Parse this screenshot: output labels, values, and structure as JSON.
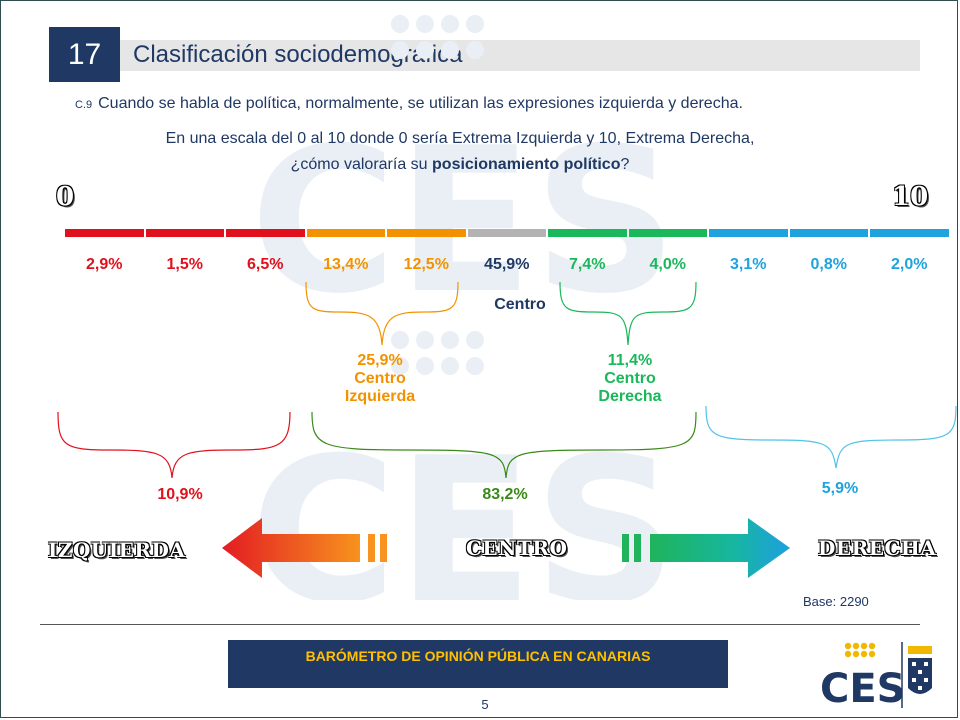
{
  "slide": {
    "number": "17",
    "title": "Clasificación sociodemográfica"
  },
  "question": {
    "code": "C.9",
    "line1": "Cuando se habla de política, normalmente, se utilizan las expresiones izquierda y derecha.",
    "line2": "En una escala del 0 al 10 donde 0 sería Extrema Izquierda y 10, Extrema Derecha,",
    "line3_pre": "¿cómo valoraría su ",
    "line3_bold": "posicionamiento político",
    "line3_post": "?"
  },
  "scale": {
    "min_label": "0",
    "max_label": "10"
  },
  "colors": {
    "red": "#e0101c",
    "orange": "#f39200",
    "gray": "#b3b3b3",
    "green": "#1ab85a",
    "blue": "#1fa3de",
    "navy": "#1f3864",
    "red_dark": "#c00000",
    "green_dark": "#3a8a1a",
    "orange_dark": "#f39200",
    "blue_light": "#4fc3e8"
  },
  "chart_data": {
    "type": "bar",
    "categories": [
      "0",
      "1",
      "2",
      "3",
      "4",
      "5",
      "6",
      "7",
      "8",
      "9",
      "10"
    ],
    "values": [
      2.9,
      1.5,
      6.5,
      13.4,
      12.5,
      45.9,
      7.4,
      4.0,
      3.1,
      0.8,
      2.0
    ],
    "value_labels": [
      "2,9%",
      "1,5%",
      "6,5%",
      "13,4%",
      "12,5%",
      "45,9%",
      "7,4%",
      "4,0%",
      "3,1%",
      "0,8%",
      "2,0%"
    ],
    "segment_colors": [
      "red",
      "red",
      "red",
      "orange",
      "orange",
      "gray",
      "green",
      "green",
      "blue",
      "blue",
      "blue"
    ],
    "groups": {
      "centro": {
        "label": "Centro"
      },
      "centro_izquierda": {
        "value": "25,9%",
        "line1": "Centro",
        "line2": "Izquierda"
      },
      "centro_derecha": {
        "value": "11,4%",
        "line1": "Centro",
        "line2": "Derecha"
      },
      "izquierda": {
        "value": "10,9%"
      },
      "centro_total": {
        "value": "83,2%"
      },
      "derecha": {
        "value": "5,9%"
      }
    },
    "arrow_labels": {
      "left": "IZQUIERDA",
      "center": "CENTRO",
      "right": "DERECHA"
    }
  },
  "base": "Base: 2290",
  "footer": {
    "banner": "BARÓMETRO DE OPINIÓN PÚBLICA EN CANARIAS",
    "page": "5"
  },
  "logo": {
    "text": "CES"
  }
}
